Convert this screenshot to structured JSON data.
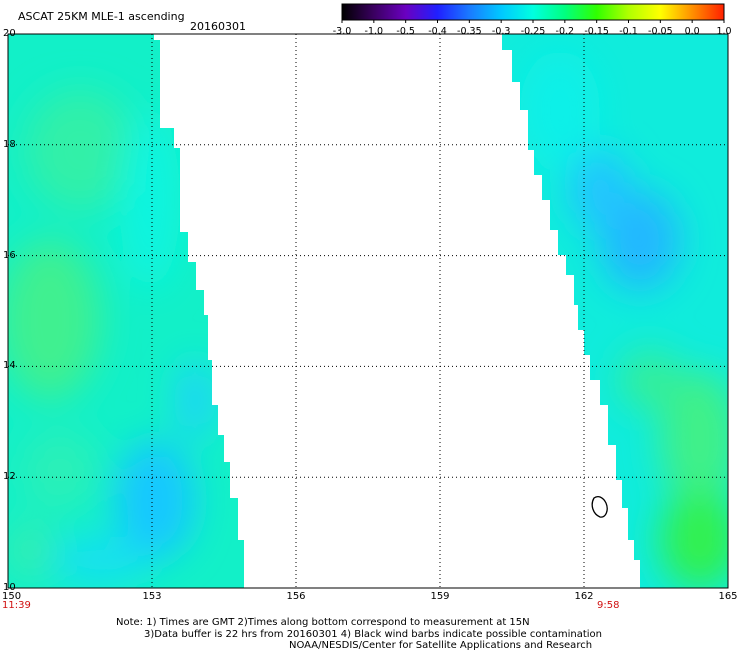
{
  "header": {
    "title": "ASCAT 25KM MLE-1 ascending",
    "date": "20160301"
  },
  "colorbar": {
    "labels": [
      "-3.0",
      "-1.0",
      "-0.5",
      "-0.4",
      "-0.35",
      "-0.3",
      "-0.25",
      "-0.2",
      "-0.15",
      "-0.1",
      "-0.05",
      "0.0",
      "1.0"
    ],
    "colors": [
      "#000000",
      "#3a0060",
      "#6a00c0",
      "#2020ff",
      "#1a7aff",
      "#00c8ff",
      "#00ffe0",
      "#00ff80",
      "#30ff00",
      "#b0ff00",
      "#ffff00",
      "#ff9000",
      "#ff2000"
    ]
  },
  "map": {
    "lon_ticks": [
      "150",
      "153",
      "156",
      "159",
      "162",
      "165"
    ],
    "lat_ticks": [
      "10",
      "12",
      "14",
      "16",
      "18",
      "20"
    ],
    "time_left": "11:39",
    "time_right": "9:58"
  },
  "notes": {
    "line1": "Note: 1) Times are GMT 2)Times along bottom correspond to measurement at 15N",
    "line2": "3)Data buffer is 22 hrs from 20160301 4) Black wind barbs indicate possible contamination",
    "line3": "NOAA/NESDIS/Center for Satellite Applications and Research"
  }
}
